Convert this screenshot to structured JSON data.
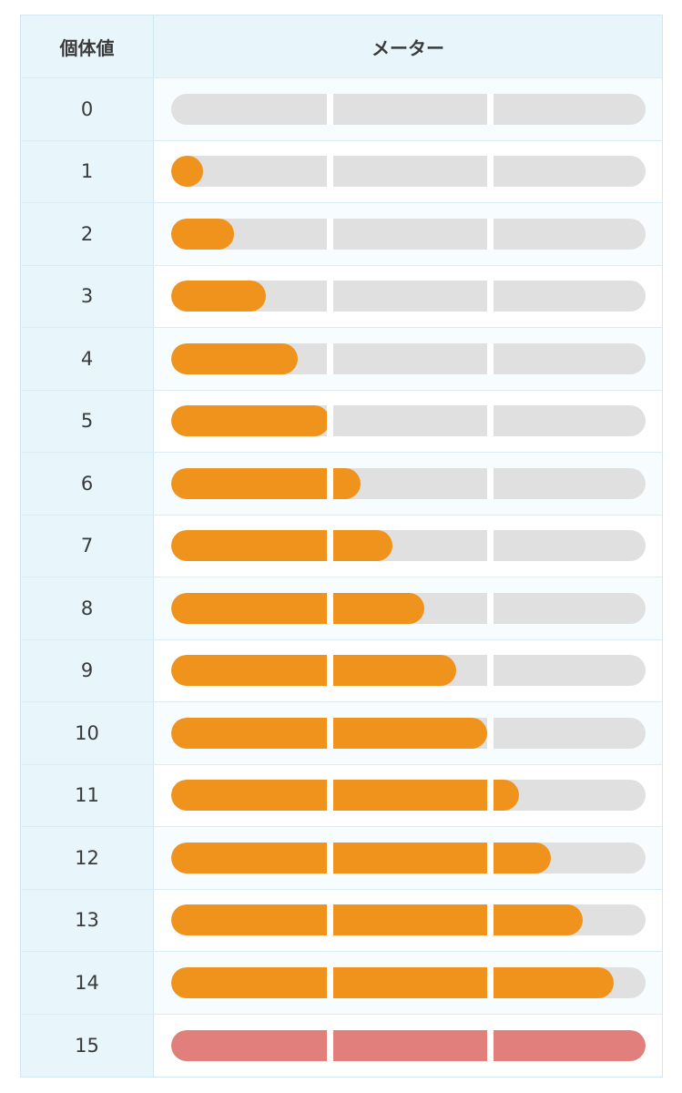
{
  "header": {
    "iv_label": "個体値",
    "meter_label": "メーター"
  },
  "colors": {
    "fill": "#ef931d",
    "max_fill": "#e07f7c",
    "track": "#e0e0e0"
  },
  "rows": [
    {
      "iv": "0",
      "level": 0
    },
    {
      "iv": "1",
      "level": 1
    },
    {
      "iv": "2",
      "level": 2
    },
    {
      "iv": "3",
      "level": 3
    },
    {
      "iv": "4",
      "level": 4
    },
    {
      "iv": "5",
      "level": 5
    },
    {
      "iv": "6",
      "level": 6
    },
    {
      "iv": "7",
      "level": 7
    },
    {
      "iv": "8",
      "level": 8
    },
    {
      "iv": "9",
      "level": 9
    },
    {
      "iv": "10",
      "level": 10
    },
    {
      "iv": "11",
      "level": 11
    },
    {
      "iv": "12",
      "level": 12
    },
    {
      "iv": "13",
      "level": 13
    },
    {
      "iv": "14",
      "level": 14
    },
    {
      "iv": "15",
      "level": 15
    }
  ]
}
